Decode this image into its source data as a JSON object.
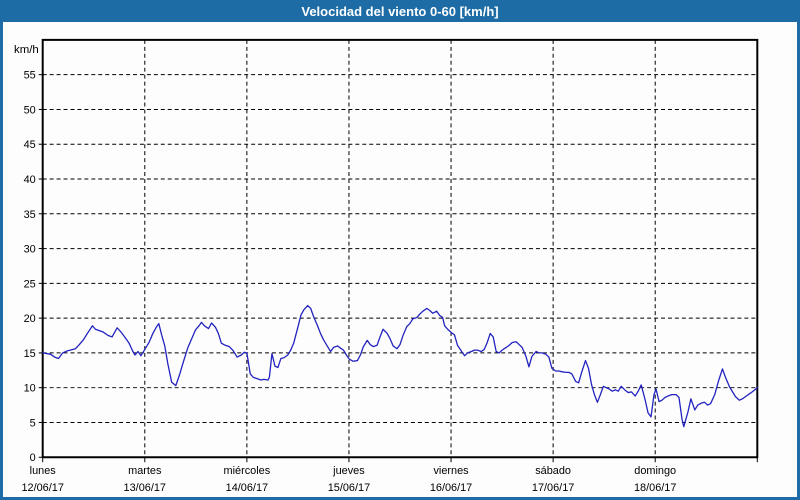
{
  "window": {
    "title": "Velocidad del viento 0-60 [km/h]"
  },
  "colors": {
    "titlebar_bg": "#1d6ca5",
    "frame_border": "#1d6ca5",
    "background": "#fcfdfc",
    "title_text": "#ffffff",
    "line": "#2222c0",
    "grid": "#000000",
    "text": "#000000"
  },
  "chart_data": {
    "type": "line",
    "title": "Velocidad del viento 0-60 [km/h]",
    "ylabel": "km/h",
    "ylim": [
      0,
      60
    ],
    "yticks": [
      0,
      5,
      10,
      15,
      20,
      25,
      30,
      35,
      40,
      45,
      50,
      55
    ],
    "x_unit": "hours since lunes 12/06/17 00:00",
    "xlim": [
      0,
      168
    ],
    "day_tick_interval_hours": 24,
    "grid": "dashed",
    "legend_position": "none",
    "days": [
      {
        "name": "lunes",
        "date": "12/06/17",
        "hour": 0
      },
      {
        "name": "martes",
        "date": "13/06/17",
        "hour": 24
      },
      {
        "name": "miércoles",
        "date": "14/06/17",
        "hour": 48
      },
      {
        "name": "jueves",
        "date": "15/06/17",
        "hour": 72
      },
      {
        "name": "viernes",
        "date": "16/06/17",
        "hour": 96
      },
      {
        "name": "sábado",
        "date": "17/06/17",
        "hour": 120
      },
      {
        "name": "domingo",
        "date": "18/06/17",
        "hour": 144
      }
    ],
    "series": [
      {
        "name": "velocidad del viento",
        "color": "#2222c0",
        "points": [
          [
            0,
            15.0
          ],
          [
            1.9,
            14.8
          ],
          [
            2.8,
            14.4
          ],
          [
            3.7,
            14.2
          ],
          [
            4.7,
            15.0
          ],
          [
            5.8,
            15.3
          ],
          [
            7.7,
            15.6
          ],
          [
            8.6,
            16.2
          ],
          [
            9.6,
            16.9
          ],
          [
            10.5,
            17.8
          ],
          [
            11.7,
            18.9
          ],
          [
            12.4,
            18.4
          ],
          [
            13.3,
            18.2
          ],
          [
            14.2,
            18.0
          ],
          [
            15.4,
            17.5
          ],
          [
            16.3,
            17.3
          ],
          [
            17.5,
            18.6
          ],
          [
            18.4,
            18.0
          ],
          [
            19.4,
            17.2
          ],
          [
            20.3,
            16.4
          ],
          [
            21.2,
            15.2
          ],
          [
            21.7,
            14.7
          ],
          [
            22.4,
            15.2
          ],
          [
            23.1,
            14.6
          ],
          [
            24,
            15.5
          ],
          [
            25,
            16.5
          ],
          [
            25.9,
            17.8
          ],
          [
            26.8,
            18.8
          ],
          [
            27.3,
            19.2
          ],
          [
            28,
            17.5
          ],
          [
            28.7,
            16.0
          ],
          [
            29.4,
            13.5
          ],
          [
            30.3,
            10.8
          ],
          [
            31.3,
            10.3
          ],
          [
            32.2,
            11.9
          ],
          [
            33.1,
            13.8
          ],
          [
            34.1,
            15.7
          ],
          [
            35,
            17.0
          ],
          [
            35.9,
            18.3
          ],
          [
            36.9,
            19.0
          ],
          [
            37.3,
            19.4
          ],
          [
            38,
            18.9
          ],
          [
            39,
            18.5
          ],
          [
            39.7,
            19.3
          ],
          [
            40.6,
            18.7
          ],
          [
            41.3,
            17.8
          ],
          [
            42,
            16.4
          ],
          [
            42.9,
            16.1
          ],
          [
            43.9,
            15.9
          ],
          [
            44.8,
            15.3
          ],
          [
            45.7,
            14.4
          ],
          [
            46.7,
            14.7
          ],
          [
            47.4,
            15.1
          ],
          [
            48,
            15.0
          ],
          [
            48.8,
            12.0
          ],
          [
            49.5,
            11.5
          ],
          [
            50.4,
            11.3
          ],
          [
            51.3,
            11.1
          ],
          [
            52,
            11.2
          ],
          [
            53,
            11.1
          ],
          [
            53.3,
            11.5
          ],
          [
            53.9,
            14.9
          ],
          [
            54.6,
            13.1
          ],
          [
            55.3,
            12.9
          ],
          [
            56,
            14.2
          ],
          [
            56.7,
            14.3
          ],
          [
            57.6,
            14.7
          ],
          [
            58.3,
            15.4
          ],
          [
            59,
            16.4
          ],
          [
            60,
            18.7
          ],
          [
            60.7,
            20.4
          ],
          [
            61.4,
            21.2
          ],
          [
            62.3,
            21.8
          ],
          [
            63,
            21.4
          ],
          [
            63.7,
            20.2
          ],
          [
            64.6,
            18.9
          ],
          [
            65.3,
            17.8
          ],
          [
            66,
            16.9
          ],
          [
            67,
            15.9
          ],
          [
            67.7,
            15.2
          ],
          [
            68.4,
            15.8
          ],
          [
            69.3,
            16.0
          ],
          [
            70,
            15.7
          ],
          [
            70.7,
            15.4
          ],
          [
            71.6,
            14.5
          ],
          [
            72.1,
            14.1
          ],
          [
            73,
            13.8
          ],
          [
            74,
            13.9
          ],
          [
            74.7,
            14.7
          ],
          [
            75.4,
            15.9
          ],
          [
            76.3,
            16.8
          ],
          [
            77,
            16.2
          ],
          [
            77.7,
            15.9
          ],
          [
            78.6,
            16.1
          ],
          [
            79.3,
            17.3
          ],
          [
            80,
            18.4
          ],
          [
            81,
            17.8
          ],
          [
            81.7,
            17.0
          ],
          [
            82.4,
            16.0
          ],
          [
            83.3,
            15.6
          ],
          [
            84,
            16.2
          ],
          [
            84.7,
            17.5
          ],
          [
            85.6,
            18.8
          ],
          [
            86.3,
            19.2
          ],
          [
            87,
            19.9
          ],
          [
            88,
            20.1
          ],
          [
            88.7,
            20.6
          ],
          [
            89.4,
            21.0
          ],
          [
            90.3,
            21.4
          ],
          [
            91,
            21.1
          ],
          [
            91.7,
            20.7
          ],
          [
            92.6,
            21.0
          ],
          [
            93.3,
            20.4
          ],
          [
            94,
            20.1
          ],
          [
            94.5,
            18.9
          ],
          [
            95.2,
            18.4
          ],
          [
            96.1,
            17.9
          ],
          [
            96.8,
            17.6
          ],
          [
            97.5,
            16.1
          ],
          [
            98.5,
            15.2
          ],
          [
            99.2,
            14.6
          ],
          [
            99.9,
            15.0
          ],
          [
            100.8,
            15.2
          ],
          [
            101.5,
            15.4
          ],
          [
            102.2,
            15.4
          ],
          [
            103.1,
            15.2
          ],
          [
            103.8,
            15.5
          ],
          [
            104.5,
            16.5
          ],
          [
            105.2,
            17.8
          ],
          [
            105.9,
            17.3
          ],
          [
            106.6,
            15.2
          ],
          [
            107.3,
            15.0
          ],
          [
            108,
            15.4
          ],
          [
            109,
            15.8
          ],
          [
            109.7,
            16.1
          ],
          [
            110.4,
            16.5
          ],
          [
            111.3,
            16.6
          ],
          [
            112,
            16.2
          ],
          [
            112.7,
            15.8
          ],
          [
            113.6,
            14.5
          ],
          [
            114.3,
            13.0
          ],
          [
            115,
            14.5
          ],
          [
            116,
            15.2
          ],
          [
            116.7,
            15.0
          ],
          [
            117.4,
            15.0
          ],
          [
            118.3,
            14.8
          ],
          [
            119,
            14.4
          ],
          [
            119.7,
            12.8
          ],
          [
            120.6,
            12.4
          ],
          [
            121.3,
            12.4
          ],
          [
            122,
            12.3
          ],
          [
            123,
            12.2
          ],
          [
            123.7,
            12.2
          ],
          [
            124.4,
            12.0
          ],
          [
            125.3,
            10.9
          ],
          [
            126,
            10.7
          ],
          [
            126.7,
            12.2
          ],
          [
            127.6,
            13.9
          ],
          [
            128.3,
            12.8
          ],
          [
            129,
            10.5
          ],
          [
            129.7,
            9.0
          ],
          [
            130.4,
            7.9
          ],
          [
            131.1,
            9.0
          ],
          [
            131.8,
            10.2
          ],
          [
            132.5,
            10.0
          ],
          [
            133.2,
            9.8
          ],
          [
            133.9,
            9.5
          ],
          [
            134.6,
            9.7
          ],
          [
            135.3,
            9.5
          ],
          [
            136,
            10.2
          ],
          [
            137,
            9.6
          ],
          [
            137.7,
            9.3
          ],
          [
            138.4,
            9.4
          ],
          [
            139.3,
            8.8
          ],
          [
            140,
            9.5
          ],
          [
            140.7,
            10.4
          ],
          [
            141.6,
            8.3
          ],
          [
            142.3,
            6.4
          ],
          [
            143,
            5.8
          ],
          [
            143.7,
            9.0
          ],
          [
            144.2,
            9.8
          ],
          [
            144.9,
            8.0
          ],
          [
            145.6,
            8.2
          ],
          [
            146.3,
            8.6
          ],
          [
            147,
            8.8
          ],
          [
            147.9,
            9.0
          ],
          [
            148.9,
            9.0
          ],
          [
            149.6,
            8.6
          ],
          [
            150.3,
            5.5
          ],
          [
            150.7,
            4.4
          ],
          [
            151.7,
            6.5
          ],
          [
            152.4,
            8.4
          ],
          [
            153.3,
            6.8
          ],
          [
            154,
            7.5
          ],
          [
            154.9,
            7.8
          ],
          [
            155.6,
            7.9
          ],
          [
            156.3,
            7.5
          ],
          [
            157,
            7.7
          ],
          [
            158,
            9.0
          ],
          [
            158.9,
            11.0
          ],
          [
            159.8,
            12.7
          ],
          [
            160.5,
            11.5
          ],
          [
            161.5,
            10.1
          ],
          [
            162.2,
            9.4
          ],
          [
            162.9,
            8.7
          ],
          [
            163.8,
            8.2
          ],
          [
            164.5,
            8.4
          ],
          [
            165.2,
            8.7
          ],
          [
            166.1,
            9.1
          ],
          [
            166.8,
            9.4
          ],
          [
            168,
            10.0
          ]
        ]
      }
    ]
  }
}
